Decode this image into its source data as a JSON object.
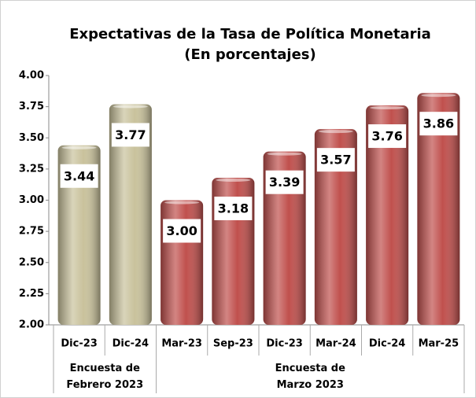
{
  "chart_data": {
    "type": "bar",
    "title": "Expectativas de la Tasa de Política Monetaria",
    "subtitle": "(En porcentajes)",
    "categories": [
      "Dic-23",
      "Dic-24",
      "Mar-23",
      "Sep-23",
      "Dic-23",
      "Mar-24",
      "Dic-24",
      "Mar-25"
    ],
    "series": [
      {
        "name": "Encuesta de Febrero 2023",
        "color": "#c9c29c",
        "values": [
          3.44,
          3.77,
          null,
          null,
          null,
          null,
          null,
          null
        ],
        "value_labels": [
          "3.44",
          "3.77",
          null,
          null,
          null,
          null,
          null,
          null
        ]
      },
      {
        "name": "Encuesta de Marzo 2023",
        "color": "#c0504d",
        "values": [
          null,
          null,
          3.0,
          3.18,
          3.39,
          3.57,
          3.76,
          3.86
        ],
        "value_labels": [
          null,
          null,
          "3.00",
          "3.18",
          "3.39",
          "3.57",
          "3.76",
          "3.86"
        ]
      }
    ],
    "ylim": [
      2,
      4
    ],
    "yticks": [
      {
        "value": 2,
        "label": "2.00"
      },
      {
        "value": 2.25,
        "label": "2.25"
      },
      {
        "value": 2.5,
        "label": "2.50"
      },
      {
        "value": 2.75,
        "label": "2.75"
      },
      {
        "value": 3,
        "label": "3.00"
      },
      {
        "value": 3.25,
        "label": "3.25"
      },
      {
        "value": 3.5,
        "label": "3.50"
      },
      {
        "value": 3.75,
        "label": "3.75"
      },
      {
        "value": 4,
        "label": "4.00"
      }
    ],
    "grid": false
  }
}
